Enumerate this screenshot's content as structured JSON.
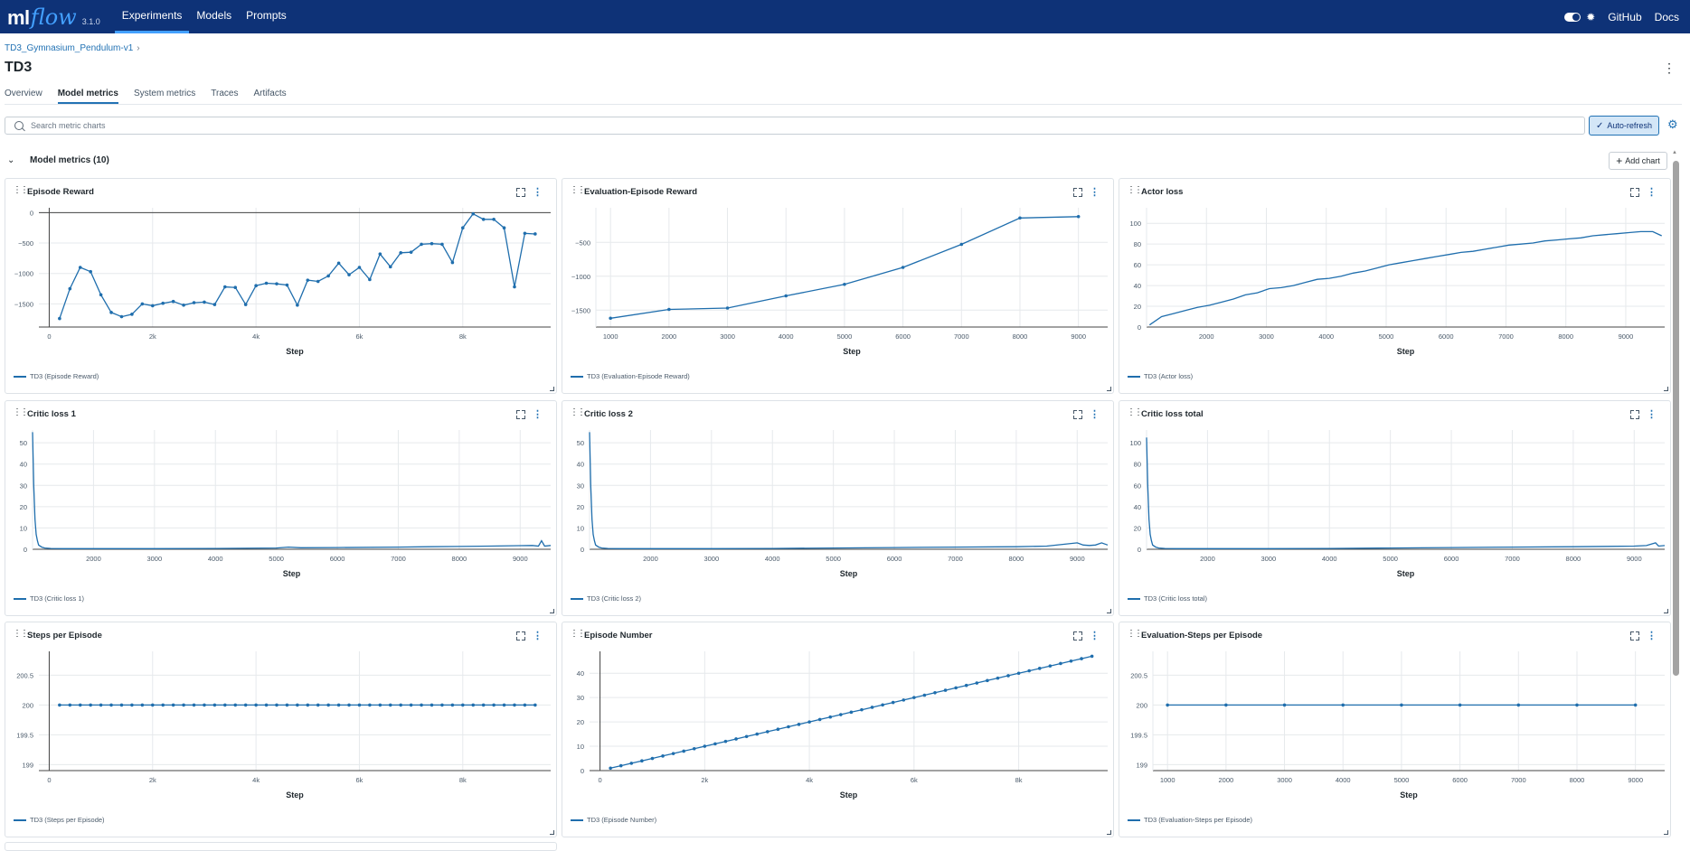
{
  "topbar": {
    "logo_ml": "ml",
    "logo_flow": "flow",
    "version": "3.1.0",
    "nav": [
      "Experiments",
      "Models",
      "Prompts"
    ],
    "active_nav": "Experiments",
    "links": [
      "GitHub",
      "Docs"
    ]
  },
  "breadcrumb": {
    "experiment": "TD3_Gymnasium_Pendulum-v1",
    "sep": "›"
  },
  "run": {
    "title": "TD3"
  },
  "tabs": [
    "Overview",
    "Model metrics",
    "System metrics",
    "Traces",
    "Artifacts"
  ],
  "active_tab": "Model metrics",
  "search": {
    "placeholder": "Search metric charts",
    "value": ""
  },
  "toolbar": {
    "autorefresh_label": "Auto-refresh",
    "add_chart_label": "Add chart"
  },
  "section": {
    "title": "Model metrics (10)"
  },
  "series_color": "#1f6ead",
  "chart_data": [
    {
      "type": "line",
      "title": "Episode Reward",
      "xlabel": "Step",
      "legend": "TD3 (Episode Reward)",
      "xlim": [
        -200,
        9700
      ],
      "ylim": [
        -1880,
        80
      ],
      "xticks": [
        {
          "v": 0,
          "l": "0"
        },
        {
          "v": 2000,
          "l": "2k"
        },
        {
          "v": 4000,
          "l": "4k"
        },
        {
          "v": 6000,
          "l": "6k"
        },
        {
          "v": 8000,
          "l": "8k"
        }
      ],
      "yticks": [
        {
          "v": 0,
          "l": "0"
        },
        {
          "v": -500,
          "l": "−500"
        },
        {
          "v": -1000,
          "l": "−1000"
        },
        {
          "v": -1500,
          "l": "−1500"
        }
      ],
      "zeroline": true,
      "markers": true,
      "x": [
        200,
        400,
        600,
        800,
        1000,
        1200,
        1400,
        1600,
        1800,
        2000,
        2200,
        2400,
        2600,
        2800,
        3000,
        3200,
        3400,
        3600,
        3800,
        4000,
        4200,
        4400,
        4600,
        4800,
        5000,
        5200,
        5400,
        5600,
        5800,
        6000,
        6200,
        6400,
        6600,
        6800,
        7000,
        7200,
        7400,
        7600,
        7800,
        8000,
        8200,
        8400,
        8600,
        8800,
        9000,
        9200,
        9400
      ],
      "y": [
        -1740,
        -1250,
        -900,
        -970,
        -1350,
        -1640,
        -1710,
        -1670,
        -1500,
        -1530,
        -1490,
        -1460,
        -1520,
        -1480,
        -1470,
        -1510,
        -1220,
        -1230,
        -1510,
        -1200,
        -1160,
        -1170,
        -1190,
        -1520,
        -1110,
        -1130,
        -1040,
        -830,
        -1020,
        -900,
        -1100,
        -680,
        -890,
        -660,
        -650,
        -520,
        -510,
        -520,
        -820,
        -250,
        -20,
        -110,
        -110,
        -250,
        -1220,
        -340,
        -350
      ]
    },
    {
      "type": "line",
      "title": "Evaluation-Episode Reward",
      "xlabel": "Step",
      "legend": "TD3 (Evaluation-Episode Reward)",
      "xlim": [
        750,
        9500
      ],
      "ylim": [
        -1750,
        10
      ],
      "xticks": [
        {
          "v": 1000,
          "l": "1000"
        },
        {
          "v": 2000,
          "l": "2000"
        },
        {
          "v": 3000,
          "l": "3000"
        },
        {
          "v": 4000,
          "l": "4000"
        },
        {
          "v": 5000,
          "l": "5000"
        },
        {
          "v": 6000,
          "l": "6000"
        },
        {
          "v": 7000,
          "l": "7000"
        },
        {
          "v": 8000,
          "l": "8000"
        },
        {
          "v": 9000,
          "l": "9000"
        }
      ],
      "yticks": [
        {
          "v": -500,
          "l": "−500"
        },
        {
          "v": -1000,
          "l": "−1000"
        },
        {
          "v": -1500,
          "l": "−1500"
        }
      ],
      "zeroline": false,
      "markers": true,
      "x": [
        1000,
        2000,
        3000,
        4000,
        5000,
        6000,
        7000,
        8000,
        9000
      ],
      "y": [
        -1620,
        -1490,
        -1470,
        -1290,
        -1120,
        -870,
        -530,
        -140,
        -120
      ]
    },
    {
      "type": "line",
      "title": "Actor loss",
      "xlabel": "Step",
      "legend": "TD3 (Actor loss)",
      "xlim": [
        1000,
        9650
      ],
      "ylim": [
        0,
        115
      ],
      "xticks": [
        {
          "v": 2000,
          "l": "2000"
        },
        {
          "v": 3000,
          "l": "3000"
        },
        {
          "v": 4000,
          "l": "4000"
        },
        {
          "v": 5000,
          "l": "5000"
        },
        {
          "v": 6000,
          "l": "6000"
        },
        {
          "v": 7000,
          "l": "7000"
        },
        {
          "v": 8000,
          "l": "8000"
        },
        {
          "v": 9000,
          "l": "9000"
        }
      ],
      "yticks": [
        {
          "v": 0,
          "l": "0"
        },
        {
          "v": 20,
          "l": "20"
        },
        {
          "v": 40,
          "l": "40"
        },
        {
          "v": 60,
          "l": "60"
        },
        {
          "v": 80,
          "l": "80"
        },
        {
          "v": 100,
          "l": "100"
        }
      ],
      "zeroline": false,
      "markers": false,
      "x": [
        1050,
        1250,
        1450,
        1650,
        1850,
        2050,
        2250,
        2450,
        2650,
        2850,
        3050,
        3250,
        3450,
        3650,
        3850,
        4050,
        4250,
        4450,
        4650,
        4850,
        5050,
        5250,
        5450,
        5650,
        5850,
        6050,
        6250,
        6450,
        6650,
        6850,
        7050,
        7250,
        7450,
        7650,
        7850,
        8050,
        8250,
        8450,
        8650,
        8850,
        9050,
        9250,
        9450,
        9600
      ],
      "y": [
        2,
        10,
        13,
        16,
        19,
        21,
        24,
        27,
        31,
        33,
        37,
        38,
        40,
        43,
        46,
        47,
        49,
        52,
        54,
        57,
        60,
        62,
        64,
        66,
        68,
        70,
        72,
        73,
        75,
        77,
        79,
        80,
        81,
        83,
        84,
        85,
        86,
        88,
        89,
        90,
        91,
        92,
        92,
        88
      ]
    },
    {
      "type": "line",
      "title": "Critic loss 1",
      "xlabel": "Step",
      "legend": "TD3 (Critic loss 1)",
      "xlim": [
        1000,
        9500
      ],
      "ylim": [
        0,
        56
      ],
      "xticks": [
        {
          "v": 2000,
          "l": "2000"
        },
        {
          "v": 3000,
          "l": "3000"
        },
        {
          "v": 4000,
          "l": "4000"
        },
        {
          "v": 5000,
          "l": "5000"
        },
        {
          "v": 6000,
          "l": "6000"
        },
        {
          "v": 7000,
          "l": "7000"
        },
        {
          "v": 8000,
          "l": "8000"
        },
        {
          "v": 9000,
          "l": "9000"
        }
      ],
      "yticks": [
        {
          "v": 0,
          "l": "0"
        },
        {
          "v": 10,
          "l": "10"
        },
        {
          "v": 20,
          "l": "20"
        },
        {
          "v": 30,
          "l": "30"
        },
        {
          "v": 40,
          "l": "40"
        },
        {
          "v": 50,
          "l": "50"
        }
      ],
      "zeroline": false,
      "markers": false,
      "x": [
        1000,
        1020,
        1040,
        1060,
        1080,
        1100,
        1150,
        1200,
        1300,
        1500,
        2000,
        3000,
        4000,
        5000,
        5200,
        5400,
        6000,
        7000,
        7500,
        8000,
        8500,
        9000,
        9200,
        9300,
        9350,
        9400,
        9500
      ],
      "y": [
        55,
        30,
        14,
        7,
        4,
        2,
        1,
        0.6,
        0.4,
        0.3,
        0.3,
        0.3,
        0.4,
        0.6,
        1,
        0.7,
        0.8,
        1,
        1.2,
        1.3,
        1.5,
        1.7,
        1.8,
        1.5,
        4,
        1.5,
        1.8
      ]
    },
    {
      "type": "line",
      "title": "Critic loss 2",
      "xlabel": "Step",
      "legend": "TD3 (Critic loss 2)",
      "xlim": [
        1000,
        9500
      ],
      "ylim": [
        0,
        56
      ],
      "xticks": [
        {
          "v": 2000,
          "l": "2000"
        },
        {
          "v": 3000,
          "l": "3000"
        },
        {
          "v": 4000,
          "l": "4000"
        },
        {
          "v": 5000,
          "l": "5000"
        },
        {
          "v": 6000,
          "l": "6000"
        },
        {
          "v": 7000,
          "l": "7000"
        },
        {
          "v": 8000,
          "l": "8000"
        },
        {
          "v": 9000,
          "l": "9000"
        }
      ],
      "yticks": [
        {
          "v": 0,
          "l": "0"
        },
        {
          "v": 10,
          "l": "10"
        },
        {
          "v": 20,
          "l": "20"
        },
        {
          "v": 30,
          "l": "30"
        },
        {
          "v": 40,
          "l": "40"
        },
        {
          "v": 50,
          "l": "50"
        }
      ],
      "zeroline": false,
      "markers": false,
      "x": [
        1000,
        1020,
        1040,
        1060,
        1080,
        1100,
        1150,
        1200,
        1300,
        1500,
        2000,
        3000,
        4000,
        5000,
        6000,
        7000,
        8000,
        8500,
        9000,
        9100,
        9200,
        9300,
        9400,
        9500
      ],
      "y": [
        55,
        30,
        14,
        7,
        4,
        2,
        1,
        0.6,
        0.4,
        0.3,
        0.3,
        0.3,
        0.4,
        0.6,
        0.8,
        1,
        1.2,
        1.5,
        3,
        2,
        1.8,
        2,
        3,
        2
      ]
    },
    {
      "type": "line",
      "title": "Critic loss total",
      "xlabel": "Step",
      "legend": "TD3 (Critic loss total)",
      "xlim": [
        1000,
        9500
      ],
      "ylim": [
        0,
        112
      ],
      "xticks": [
        {
          "v": 2000,
          "l": "2000"
        },
        {
          "v": 3000,
          "l": "3000"
        },
        {
          "v": 4000,
          "l": "4000"
        },
        {
          "v": 5000,
          "l": "5000"
        },
        {
          "v": 6000,
          "l": "6000"
        },
        {
          "v": 7000,
          "l": "7000"
        },
        {
          "v": 8000,
          "l": "8000"
        },
        {
          "v": 9000,
          "l": "9000"
        }
      ],
      "yticks": [
        {
          "v": 0,
          "l": "0"
        },
        {
          "v": 20,
          "l": "20"
        },
        {
          "v": 40,
          "l": "40"
        },
        {
          "v": 60,
          "l": "60"
        },
        {
          "v": 80,
          "l": "80"
        },
        {
          "v": 100,
          "l": "100"
        }
      ],
      "zeroline": false,
      "markers": false,
      "x": [
        1000,
        1020,
        1040,
        1060,
        1080,
        1100,
        1150,
        1200,
        1300,
        1500,
        2000,
        3000,
        4000,
        5000,
        6000,
        7000,
        8000,
        9000,
        9200,
        9350,
        9400,
        9500
      ],
      "y": [
        105,
        60,
        28,
        14,
        8,
        4,
        2,
        1.2,
        0.8,
        0.6,
        0.6,
        0.6,
        0.8,
        1.2,
        1.6,
        2,
        2.4,
        3,
        3.5,
        6,
        3,
        3.5
      ]
    },
    {
      "type": "line",
      "title": "Steps per Episode",
      "xlabel": "Step",
      "legend": "TD3 (Steps per Episode)",
      "xlim": [
        -200,
        9700
      ],
      "ylim": [
        198.9,
        200.9
      ],
      "xticks": [
        {
          "v": 0,
          "l": "0"
        },
        {
          "v": 2000,
          "l": "2k"
        },
        {
          "v": 4000,
          "l": "4k"
        },
        {
          "v": 6000,
          "l": "6k"
        },
        {
          "v": 8000,
          "l": "8k"
        }
      ],
      "yticks": [
        {
          "v": 199,
          "l": "199"
        },
        {
          "v": 199.5,
          "l": "199.5"
        },
        {
          "v": 200,
          "l": "200"
        },
        {
          "v": 200.5,
          "l": "200.5"
        }
      ],
      "zeroline": false,
      "markers": true,
      "yaxisline_at_x0": true,
      "x": [
        200,
        400,
        600,
        800,
        1000,
        1200,
        1400,
        1600,
        1800,
        2000,
        2200,
        2400,
        2600,
        2800,
        3000,
        3200,
        3400,
        3600,
        3800,
        4000,
        4200,
        4400,
        4600,
        4800,
        5000,
        5200,
        5400,
        5600,
        5800,
        6000,
        6200,
        6400,
        6600,
        6800,
        7000,
        7200,
        7400,
        7600,
        7800,
        8000,
        8200,
        8400,
        8600,
        8800,
        9000,
        9200,
        9400
      ],
      "y": [
        200,
        200,
        200,
        200,
        200,
        200,
        200,
        200,
        200,
        200,
        200,
        200,
        200,
        200,
        200,
        200,
        200,
        200,
        200,
        200,
        200,
        200,
        200,
        200,
        200,
        200,
        200,
        200,
        200,
        200,
        200,
        200,
        200,
        200,
        200,
        200,
        200,
        200,
        200,
        200,
        200,
        200,
        200,
        200,
        200,
        200,
        200
      ]
    },
    {
      "type": "line",
      "title": "Episode Number",
      "xlabel": "Step",
      "legend": "TD3 (Episode Number)",
      "xlim": [
        -200,
        9700
      ],
      "ylim": [
        0,
        49
      ],
      "xticks": [
        {
          "v": 0,
          "l": "0"
        },
        {
          "v": 2000,
          "l": "2k"
        },
        {
          "v": 4000,
          "l": "4k"
        },
        {
          "v": 6000,
          "l": "6k"
        },
        {
          "v": 8000,
          "l": "8k"
        }
      ],
      "yticks": [
        {
          "v": 0,
          "l": "0"
        },
        {
          "v": 10,
          "l": "10"
        },
        {
          "v": 20,
          "l": "20"
        },
        {
          "v": 30,
          "l": "30"
        },
        {
          "v": 40,
          "l": "40"
        }
      ],
      "zeroline": false,
      "markers": true,
      "yaxisline_at_x0": true,
      "x": [
        200,
        400,
        600,
        800,
        1000,
        1200,
        1400,
        1600,
        1800,
        2000,
        2200,
        2400,
        2600,
        2800,
        3000,
        3200,
        3400,
        3600,
        3800,
        4000,
        4200,
        4400,
        4600,
        4800,
        5000,
        5200,
        5400,
        5600,
        5800,
        6000,
        6200,
        6400,
        6600,
        6800,
        7000,
        7200,
        7400,
        7600,
        7800,
        8000,
        8200,
        8400,
        8600,
        8800,
        9000,
        9200,
        9400
      ],
      "y": [
        1,
        2,
        3,
        4,
        5,
        6,
        7,
        8,
        9,
        10,
        11,
        12,
        13,
        14,
        15,
        16,
        17,
        18,
        19,
        20,
        21,
        22,
        23,
        24,
        25,
        26,
        27,
        28,
        29,
        30,
        31,
        32,
        33,
        34,
        35,
        36,
        37,
        38,
        39,
        40,
        41,
        42,
        43,
        44,
        45,
        46,
        47
      ]
    },
    {
      "type": "line",
      "title": "Evaluation-Steps per Episode",
      "xlabel": "Step",
      "legend": "TD3 (Evaluation-Steps per Episode)",
      "xlim": [
        750,
        9500
      ],
      "ylim": [
        198.9,
        200.9
      ],
      "xticks": [
        {
          "v": 1000,
          "l": "1000"
        },
        {
          "v": 2000,
          "l": "2000"
        },
        {
          "v": 3000,
          "l": "3000"
        },
        {
          "v": 4000,
          "l": "4000"
        },
        {
          "v": 5000,
          "l": "5000"
        },
        {
          "v": 6000,
          "l": "6000"
        },
        {
          "v": 7000,
          "l": "7000"
        },
        {
          "v": 8000,
          "l": "8000"
        },
        {
          "v": 9000,
          "l": "9000"
        }
      ],
      "yticks": [
        {
          "v": 199,
          "l": "199"
        },
        {
          "v": 199.5,
          "l": "199.5"
        },
        {
          "v": 200,
          "l": "200"
        },
        {
          "v": 200.5,
          "l": "200.5"
        }
      ],
      "zeroline": false,
      "markers": true,
      "x": [
        1000,
        2000,
        3000,
        4000,
        5000,
        6000,
        7000,
        8000,
        9000
      ],
      "y": [
        200,
        200,
        200,
        200,
        200,
        200,
        200,
        200,
        200
      ]
    }
  ]
}
